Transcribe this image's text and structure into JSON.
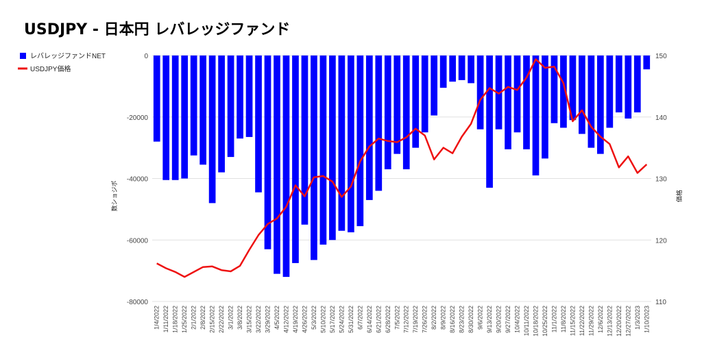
{
  "chart_data": {
    "type": "bar",
    "title": "USDJPY - 日本円 レバレッジファンド",
    "ylabel_left": "数ショジポ",
    "ylabel_right": "価格",
    "ylim_left": [
      -80000,
      0
    ],
    "yticks_left": [
      0,
      -20000,
      -40000,
      -60000,
      -80000
    ],
    "ylim_right": [
      110,
      150
    ],
    "yticks_right": [
      150,
      140,
      130,
      120,
      110
    ],
    "legend_position": "left",
    "grid": true,
    "categories": [
      "1/4/2022",
      "1/11/2022",
      "1/18/2022",
      "1/25/2022",
      "2/1/2022",
      "2/8/2022",
      "2/15/2022",
      "2/22/2022",
      "3/1/2022",
      "3/8/2022",
      "3/15/2022",
      "3/22/2022",
      "3/29/2022",
      "4/5/2022",
      "4/12/2022",
      "4/19/2022",
      "4/26/2022",
      "5/3/2022",
      "5/10/2022",
      "5/17/2022",
      "5/24/2022",
      "5/31/2022",
      "6/7/2022",
      "6/14/2022",
      "6/21/2022",
      "6/28/2022",
      "7/5/2022",
      "7/12/2022",
      "7/19/2022",
      "7/26/2022",
      "8/2/2022",
      "8/9/2022",
      "8/16/2022",
      "8/23/2022",
      "8/30/2022",
      "9/6/2022",
      "9/13/2022",
      "9/20/2022",
      "9/27/2022",
      "10/4/2022",
      "10/11/2022",
      "10/18/2022",
      "10/25/2022",
      "11/1/2022",
      "11/8/2022",
      "11/15/2022",
      "11/22/2022",
      "11/29/2022",
      "12/6/2022",
      "12/13/2022",
      "12/20/2022",
      "12/27/2022",
      "1/3/2023",
      "1/10/2023"
    ],
    "series": [
      {
        "name": "レバレッジファンドNET",
        "axis": "left",
        "color": "#0000ff",
        "values": [
          -28000,
          -40500,
          -40500,
          -40000,
          -32500,
          -35500,
          -48000,
          -38000,
          -33000,
          -27000,
          -26500,
          -44500,
          -63000,
          -71000,
          -72000,
          -67500,
          -55000,
          -66500,
          -61500,
          -60000,
          -57000,
          -57500,
          -55500,
          -47000,
          -44000,
          -37000,
          -32000,
          -37000,
          -30000,
          -25000,
          -19500,
          -10500,
          -8500,
          -8000,
          -9000,
          -24000,
          -43000,
          -24000,
          -30500,
          -25000,
          -30500,
          -39000,
          -33500,
          -22000,
          -23500,
          -21000,
          -25500,
          -30000,
          -32000,
          -23500,
          -18500,
          -20500,
          -18500,
          -4500
        ]
      },
      {
        "name": "USDJPY価格",
        "axis": "right",
        "color": "#ee1111",
        "type": "line",
        "values": [
          116.2,
          115.4,
          114.8,
          114.0,
          114.8,
          115.6,
          115.7,
          115.1,
          114.9,
          115.8,
          118.4,
          120.8,
          122.6,
          123.5,
          125.4,
          128.9,
          127.1,
          130.2,
          130.4,
          129.5,
          127.0,
          128.7,
          132.8,
          135.2,
          136.5,
          136.1,
          135.9,
          136.7,
          138.1,
          137.0,
          133.1,
          135.0,
          134.1,
          136.8,
          138.9,
          142.8,
          144.7,
          143.8,
          144.9,
          144.4,
          146.4,
          149.4,
          148.0,
          148.2,
          145.5,
          139.3,
          141.1,
          138.4,
          136.8,
          135.6,
          131.8,
          133.6,
          130.9,
          132.3
        ]
      }
    ]
  }
}
